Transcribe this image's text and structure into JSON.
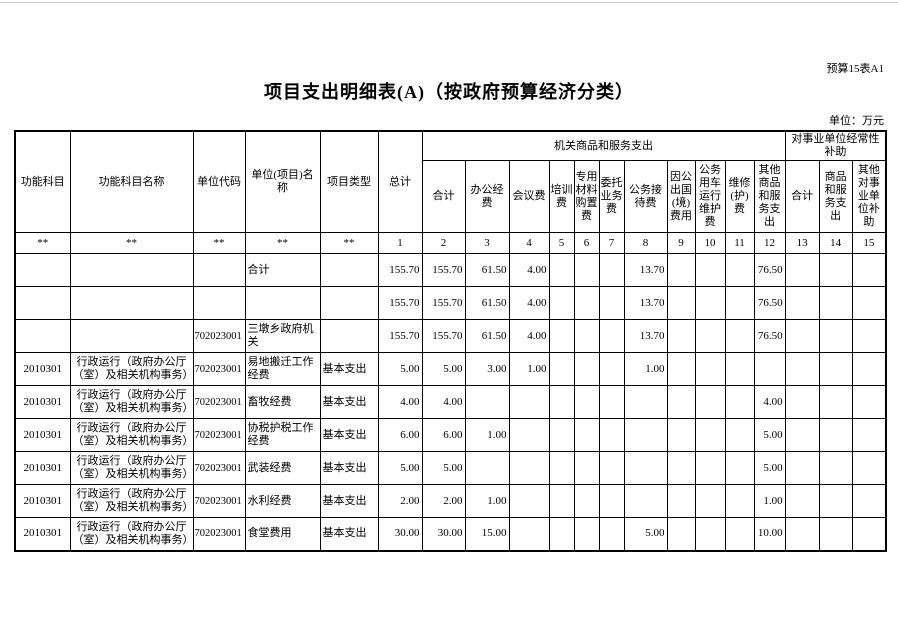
{
  "colors": {
    "background": "#ffffff",
    "text": "#000000",
    "table_border": "#000000"
  },
  "page": {
    "doc_code": "预算15表A1",
    "title": "项目支出明细表(A)（按政府预算经济分类）",
    "unit_note": "单位：万元"
  },
  "table": {
    "left_headers": [
      "功能科目",
      "功能科目名称",
      "单位代码",
      "单位(项目)名称",
      "项目类型",
      "总计"
    ],
    "group1": {
      "label": "机关商品和服务支出",
      "columns": [
        "合计",
        "办公经费",
        "会议费",
        "培训费",
        "专用材料购置费",
        "委托业务费",
        "公务接待费",
        "因公出国(境)费用",
        "公务用车运行维护费",
        "维修(护)费",
        "其他商品和服务支出"
      ]
    },
    "group2": {
      "label": "对事业单位经常性补助",
      "columns": [
        "合计",
        "商品和服务支出",
        "其他对事业单位补助"
      ]
    },
    "numbering": [
      "**",
      "**",
      "**",
      "**",
      "**",
      "1",
      "2",
      "3",
      "4",
      "5",
      "6",
      "7",
      "8",
      "9",
      "10",
      "11",
      "12",
      "13",
      "14",
      "15"
    ],
    "rows": [
      [
        "",
        "",
        "",
        "合计",
        "",
        "155.70",
        "155.70",
        "61.50",
        "4.00",
        "",
        "",
        "",
        "13.70",
        "",
        "",
        "",
        "76.50",
        "",
        "",
        ""
      ],
      [
        "",
        "",
        "",
        "",
        "",
        "155.70",
        "155.70",
        "61.50",
        "4.00",
        "",
        "",
        "",
        "13.70",
        "",
        "",
        "",
        "76.50",
        "",
        "",
        ""
      ],
      [
        "",
        "",
        "702023001",
        "三墩乡政府机关",
        "",
        "155.70",
        "155.70",
        "61.50",
        "4.00",
        "",
        "",
        "",
        "13.70",
        "",
        "",
        "",
        "76.50",
        "",
        "",
        ""
      ],
      [
        "2010301",
        "行政运行（政府办公厅（室）及相关机构事务）",
        "702023001",
        "易地搬迁工作经费",
        "基本支出",
        "5.00",
        "5.00",
        "3.00",
        "1.00",
        "",
        "",
        "",
        "1.00",
        "",
        "",
        "",
        "",
        "",
        "",
        ""
      ],
      [
        "2010301",
        "行政运行（政府办公厅（室）及相关机构事务）",
        "702023001",
        "畜牧经费",
        "基本支出",
        "4.00",
        "4.00",
        "",
        "",
        "",
        "",
        "",
        "",
        "",
        "",
        "",
        "4.00",
        "",
        "",
        ""
      ],
      [
        "2010301",
        "行政运行（政府办公厅（室）及相关机构事务）",
        "702023001",
        "协税护税工作经费",
        "基本支出",
        "6.00",
        "6.00",
        "1.00",
        "",
        "",
        "",
        "",
        "",
        "",
        "",
        "",
        "5.00",
        "",
        "",
        ""
      ],
      [
        "2010301",
        "行政运行（政府办公厅（室）及相关机构事务）",
        "702023001",
        "武装经费",
        "基本支出",
        "5.00",
        "5.00",
        "",
        "",
        "",
        "",
        "",
        "",
        "",
        "",
        "",
        "5.00",
        "",
        "",
        ""
      ],
      [
        "2010301",
        "行政运行（政府办公厅（室）及相关机构事务）",
        "702023001",
        "水利经费",
        "基本支出",
        "2.00",
        "2.00",
        "1.00",
        "",
        "",
        "",
        "",
        "",
        "",
        "",
        "",
        "1.00",
        "",
        "",
        ""
      ],
      [
        "2010301",
        "行政运行（政府办公厅（室）及相关机构事务）",
        "702023001",
        "食堂费用",
        "基本支出",
        "30.00",
        "30.00",
        "15.00",
        "",
        "",
        "",
        "",
        "5.00",
        "",
        "",
        "",
        "10.00",
        "",
        "",
        ""
      ]
    ]
  }
}
